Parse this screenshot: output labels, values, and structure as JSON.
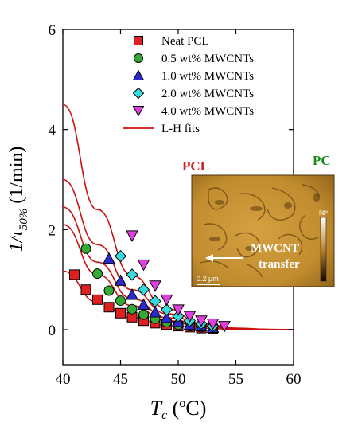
{
  "chart_data": {
    "type": "scatter",
    "xlabel_main": "T",
    "xlabel_sub": "c",
    "xlabel_unit": " (ºC)",
    "ylabel_pre": "1/",
    "ylabel_tau": "τ",
    "ylabel_sub": "50%",
    "ylabel_unit": " (1/min)",
    "xlim": [
      40,
      60
    ],
    "ylim": [
      -0.7,
      6
    ],
    "xticks": [
      "40",
      "45",
      "50",
      "55",
      "60"
    ],
    "yticks": [
      "0",
      "2",
      "4",
      "6"
    ],
    "series": [
      {
        "name": "Neat PCL",
        "marker": "square",
        "color": "#e02020",
        "x": [
          41,
          42,
          43,
          44,
          45,
          46,
          47,
          48,
          49,
          50,
          51,
          52,
          53
        ],
        "y": [
          1.1,
          0.8,
          0.6,
          0.45,
          0.33,
          0.25,
          0.18,
          0.13,
          0.1,
          0.07,
          0.05,
          0.03,
          0.02
        ]
      },
      {
        "name": "0.5 wt% MWCNTs",
        "marker": "circle",
        "color": "#33aa33",
        "x": [
          42,
          43,
          44,
          45,
          46,
          47,
          48,
          49,
          50,
          51,
          52,
          53
        ],
        "y": [
          1.62,
          1.12,
          0.78,
          0.58,
          0.41,
          0.3,
          0.22,
          0.15,
          0.1,
          0.07,
          0.05,
          0.03
        ]
      },
      {
        "name": "1.0 wt% MWCNTs",
        "marker": "triangle-up",
        "color": "#2a2ad0",
        "x": [
          44,
          45,
          46,
          47,
          48,
          49,
          50,
          51,
          52,
          53
        ],
        "y": [
          1.42,
          0.98,
          0.7,
          0.5,
          0.35,
          0.24,
          0.16,
          0.1,
          0.07,
          0.04
        ]
      },
      {
        "name": "2.0 wt% MWCNTs",
        "marker": "diamond",
        "color": "#33dddd",
        "x": [
          45,
          46,
          47,
          48,
          49,
          50,
          51,
          52,
          53
        ],
        "y": [
          1.47,
          1.1,
          0.8,
          0.57,
          0.4,
          0.27,
          0.18,
          0.12,
          0.07
        ]
      },
      {
        "name": "4.0 wt% MWCNTs",
        "marker": "triangle-down",
        "color": "#e040e0",
        "x": [
          46,
          47,
          48,
          49,
          50,
          51,
          52,
          53,
          54
        ],
        "y": [
          1.88,
          1.3,
          0.88,
          0.6,
          0.4,
          0.27,
          0.18,
          0.12,
          0.07
        ]
      }
    ],
    "fits": {
      "name": "L-H fits",
      "color": "#cc1111",
      "curves": [
        {
          "x": [
            40,
            43,
            46,
            49,
            52,
            55,
            58,
            60
          ],
          "y": [
            1.17,
            0.55,
            0.24,
            0.09,
            0.03,
            0.008,
            0.002,
            0.001
          ]
        },
        {
          "x": [
            40,
            43,
            46,
            49,
            52,
            55,
            58,
            60
          ],
          "y": [
            2.1,
            1.1,
            0.48,
            0.18,
            0.06,
            0.015,
            0.003,
            0.001
          ]
        },
        {
          "x": [
            40,
            43,
            46,
            49,
            52,
            55,
            58,
            60
          ],
          "y": [
            2.45,
            1.35,
            0.62,
            0.24,
            0.08,
            0.02,
            0.004,
            0.001
          ]
        },
        {
          "x": [
            40,
            43,
            46,
            49,
            52,
            55,
            58,
            60
          ],
          "y": [
            3.0,
            1.7,
            0.8,
            0.32,
            0.1,
            0.025,
            0.005,
            0.001
          ]
        },
        {
          "x": [
            40,
            43,
            46,
            49,
            52,
            55,
            58,
            60
          ],
          "y": [
            4.5,
            2.4,
            1.08,
            0.42,
            0.13,
            0.032,
            0.006,
            0.001
          ]
        }
      ]
    },
    "legend_position": "top-right",
    "inset": {
      "label_pcl": "PCL",
      "label_pc": "PC",
      "label_pcl_color": "#d82020",
      "label_pc_color": "#1a8a1a",
      "scale_bar": "0.2 μm",
      "colorbar_label": "50°",
      "arrow_text_1": "MWCNT",
      "arrow_text_2": "transfer"
    }
  }
}
